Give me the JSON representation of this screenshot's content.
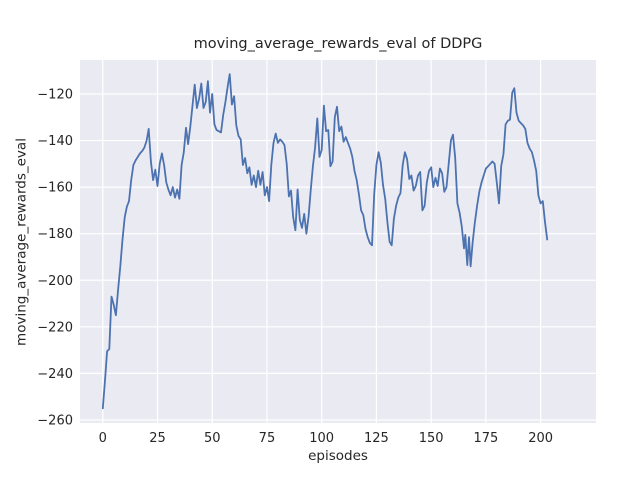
{
  "figure": {
    "title": "moving_average_rewards_eval of DDPG",
    "xlabel": "episodes",
    "ylabel": "moving_average_rewards_eval"
  },
  "style": {
    "plot_bg": "#EAEAF2",
    "grid_color": "#FFFFFF",
    "line_color": "#4C72B0",
    "text_color": "#262626"
  },
  "chart_data": {
    "type": "line",
    "title": "moving_average_rewards_eval of DDPG",
    "xlabel": "episodes",
    "ylabel": "moving_average_rewards_eval",
    "grid": true,
    "legend": "none",
    "xlim": [
      -10.4,
      225.3
    ],
    "ylim": [
      -261.3,
      -105.4
    ],
    "x_tick_values": [
      0,
      25,
      50,
      75,
      100,
      125,
      150,
      175,
      200
    ],
    "x_tick_labels": [
      "0",
      "25",
      "50",
      "75",
      "100",
      "125",
      "150",
      "175",
      "200"
    ],
    "y_tick_values": [
      -120,
      -140,
      -160,
      -180,
      -200,
      -220,
      -240,
      -260
    ],
    "y_tick_labels": [
      "−120",
      "−140",
      "−160",
      "−180",
      "−200",
      "−220",
      "−240",
      "−260"
    ],
    "series": [
      {
        "name": "moving_average_rewards_eval",
        "color": "#4C72B0",
        "points": [
          [
            0,
            -255
          ],
          [
            1,
            -243
          ],
          [
            2,
            -230.5
          ],
          [
            3,
            -229.5
          ],
          [
            4,
            -207
          ],
          [
            5,
            -210.5
          ],
          [
            6,
            -215
          ],
          [
            7,
            -204
          ],
          [
            8,
            -194
          ],
          [
            9,
            -182.5
          ],
          [
            10,
            -173
          ],
          [
            11,
            -168.5
          ],
          [
            12,
            -166
          ],
          [
            13,
            -157
          ],
          [
            14,
            -150.5
          ],
          [
            15,
            -148.5
          ],
          [
            16,
            -147
          ],
          [
            17,
            -145.5
          ],
          [
            18,
            -144.5
          ],
          [
            19,
            -143
          ],
          [
            20,
            -140
          ],
          [
            21,
            -135
          ],
          [
            22,
            -149
          ],
          [
            23,
            -157
          ],
          [
            24,
            -152.5
          ],
          [
            25,
            -159.5
          ],
          [
            26,
            -150
          ],
          [
            27,
            -145.5
          ],
          [
            28,
            -150.5
          ],
          [
            29,
            -158
          ],
          [
            30,
            -161
          ],
          [
            31,
            -163.5
          ],
          [
            32,
            -160
          ],
          [
            33,
            -164.5
          ],
          [
            34,
            -161
          ],
          [
            35,
            -165
          ],
          [
            36,
            -150.5
          ],
          [
            37,
            -145
          ],
          [
            38,
            -134.5
          ],
          [
            39,
            -141.5
          ],
          [
            40,
            -134
          ],
          [
            41,
            -125
          ],
          [
            42,
            -116
          ],
          [
            43,
            -126
          ],
          [
            44,
            -122
          ],
          [
            45,
            -115.5
          ],
          [
            46,
            -126
          ],
          [
            47,
            -123.5
          ],
          [
            48,
            -114.5
          ],
          [
            49,
            -128
          ],
          [
            50,
            -120
          ],
          [
            51,
            -133
          ],
          [
            52,
            -135.5
          ],
          [
            53,
            -136
          ],
          [
            54,
            -136.5
          ],
          [
            55,
            -129
          ],
          [
            56,
            -123.5
          ],
          [
            57,
            -117
          ],
          [
            58,
            -111.5
          ],
          [
            59,
            -124.5
          ],
          [
            60,
            -121
          ],
          [
            61,
            -133.5
          ],
          [
            62,
            -138
          ],
          [
            63,
            -139.5
          ],
          [
            64,
            -150.5
          ],
          [
            65,
            -147.5
          ],
          [
            66,
            -154
          ],
          [
            67,
            -151.5
          ],
          [
            68,
            -159
          ],
          [
            69,
            -155
          ],
          [
            70,
            -160
          ],
          [
            71,
            -153
          ],
          [
            72,
            -159
          ],
          [
            73,
            -153.5
          ],
          [
            74,
            -163.5
          ],
          [
            75,
            -160
          ],
          [
            76,
            -166
          ],
          [
            77,
            -150.5
          ],
          [
            78,
            -141
          ],
          [
            79,
            -137
          ],
          [
            80,
            -141
          ],
          [
            81,
            -139.5
          ],
          [
            82,
            -140.5
          ],
          [
            83,
            -142
          ],
          [
            84,
            -150
          ],
          [
            85,
            -164
          ],
          [
            86,
            -161.5
          ],
          [
            87,
            -173
          ],
          [
            88,
            -178.5
          ],
          [
            89,
            -161
          ],
          [
            90,
            -174
          ],
          [
            91,
            -177.5
          ],
          [
            92,
            -171.5
          ],
          [
            93,
            -180
          ],
          [
            94,
            -172.5
          ],
          [
            95,
            -161.5
          ],
          [
            96,
            -151
          ],
          [
            97,
            -143
          ],
          [
            98,
            -130.5
          ],
          [
            99,
            -147
          ],
          [
            100,
            -144
          ],
          [
            101,
            -125
          ],
          [
            102,
            -136
          ],
          [
            103,
            -135.5
          ],
          [
            104,
            -151
          ],
          [
            105,
            -149
          ],
          [
            106,
            -130
          ],
          [
            107,
            -125.5
          ],
          [
            108,
            -136
          ],
          [
            109,
            -134
          ],
          [
            110,
            -140.5
          ],
          [
            111,
            -138.5
          ],
          [
            112,
            -141
          ],
          [
            113,
            -143.5
          ],
          [
            114,
            -147
          ],
          [
            115,
            -153
          ],
          [
            116,
            -157
          ],
          [
            117,
            -163
          ],
          [
            118,
            -170
          ],
          [
            119,
            -172
          ],
          [
            120,
            -178
          ],
          [
            121,
            -181.5
          ],
          [
            122,
            -184
          ],
          [
            123,
            -185
          ],
          [
            124,
            -163
          ],
          [
            125,
            -150.5
          ],
          [
            126,
            -145
          ],
          [
            127,
            -149.5
          ],
          [
            128,
            -159
          ],
          [
            129,
            -165
          ],
          [
            130,
            -175
          ],
          [
            131,
            -183.5
          ],
          [
            132,
            -185
          ],
          [
            133,
            -173.5
          ],
          [
            134,
            -168
          ],
          [
            135,
            -164.5
          ],
          [
            136,
            -162.5
          ],
          [
            137,
            -150.5
          ],
          [
            138,
            -145
          ],
          [
            139,
            -148
          ],
          [
            140,
            -156.5
          ],
          [
            141,
            -155
          ],
          [
            142,
            -161.5
          ],
          [
            143,
            -159.5
          ],
          [
            144,
            -155
          ],
          [
            145,
            -153.5
          ],
          [
            146,
            -170
          ],
          [
            147,
            -168
          ],
          [
            148,
            -158
          ],
          [
            149,
            -153
          ],
          [
            150,
            -151.5
          ],
          [
            151,
            -160
          ],
          [
            152,
            -156
          ],
          [
            153,
            -159.5
          ],
          [
            154,
            -152
          ],
          [
            155,
            -154
          ],
          [
            156,
            -162
          ],
          [
            157,
            -160
          ],
          [
            158,
            -150
          ],
          [
            159,
            -140
          ],
          [
            160,
            -137.5
          ],
          [
            161,
            -147.5
          ],
          [
            162,
            -167
          ],
          [
            163,
            -171
          ],
          [
            164,
            -177
          ],
          [
            165,
            -186.3
          ],
          [
            165.6,
            -180.5
          ],
          [
            166.5,
            -193.5
          ],
          [
            167.3,
            -181.5
          ],
          [
            168,
            -194
          ],
          [
            169,
            -183.5
          ],
          [
            170,
            -175
          ],
          [
            171,
            -168
          ],
          [
            172,
            -162
          ],
          [
            173,
            -158
          ],
          [
            174,
            -155
          ],
          [
            175,
            -152
          ],
          [
            176,
            -151
          ],
          [
            177,
            -150
          ],
          [
            178,
            -149
          ],
          [
            179,
            -150
          ],
          [
            180,
            -158
          ],
          [
            181,
            -167
          ],
          [
            182,
            -151
          ],
          [
            183,
            -146
          ],
          [
            184,
            -133
          ],
          [
            185,
            -131.5
          ],
          [
            186,
            -131
          ],
          [
            187,
            -119.5
          ],
          [
            188,
            -117.5
          ],
          [
            189,
            -128
          ],
          [
            190,
            -131.5
          ],
          [
            191,
            -132.5
          ],
          [
            192,
            -133.5
          ],
          [
            193,
            -135
          ],
          [
            194,
            -141
          ],
          [
            195,
            -143.5
          ],
          [
            196,
            -145
          ],
          [
            197,
            -148.5
          ],
          [
            198,
            -153
          ],
          [
            199,
            -163.5
          ],
          [
            200,
            -167
          ],
          [
            201,
            -166
          ],
          [
            202,
            -175
          ],
          [
            203,
            -182.5
          ]
        ]
      }
    ]
  }
}
